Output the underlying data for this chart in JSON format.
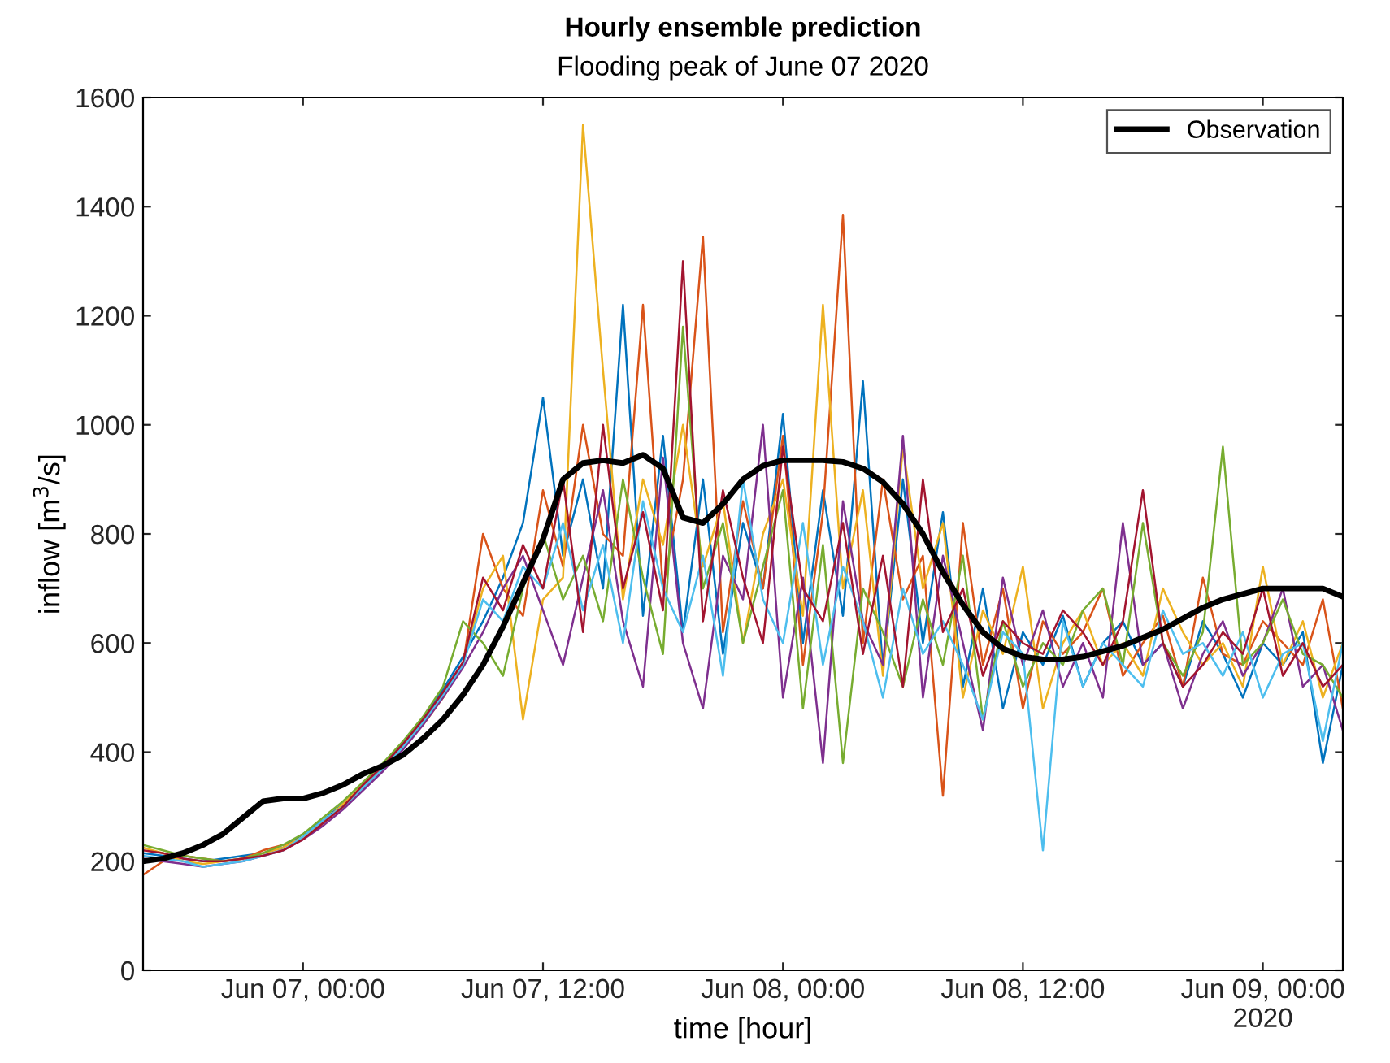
{
  "chart_data": {
    "type": "line",
    "title": "Hourly ensemble prediction",
    "subtitle": "Flooding peak of June 07 2020",
    "xlabel": "time [hour]",
    "ylabel": "inflow [m$^{3}$/s]",
    "x": [
      "2020-06-06T16:00",
      "2020-06-06T17:00",
      "2020-06-06T18:00",
      "2020-06-06T19:00",
      "2020-06-06T20:00",
      "2020-06-06T21:00",
      "2020-06-06T22:00",
      "2020-06-06T23:00",
      "2020-06-07T00:00",
      "2020-06-07T01:00",
      "2020-06-07T02:00",
      "2020-06-07T03:00",
      "2020-06-07T04:00",
      "2020-06-07T05:00",
      "2020-06-07T06:00",
      "2020-06-07T07:00",
      "2020-06-07T08:00",
      "2020-06-07T09:00",
      "2020-06-07T10:00",
      "2020-06-07T11:00",
      "2020-06-07T12:00",
      "2020-06-07T13:00",
      "2020-06-07T14:00",
      "2020-06-07T15:00",
      "2020-06-07T16:00",
      "2020-06-07T17:00",
      "2020-06-07T18:00",
      "2020-06-07T19:00",
      "2020-06-07T20:00",
      "2020-06-07T21:00",
      "2020-06-07T22:00",
      "2020-06-07T23:00",
      "2020-06-08T00:00",
      "2020-06-08T01:00",
      "2020-06-08T02:00",
      "2020-06-08T03:00",
      "2020-06-08T04:00",
      "2020-06-08T05:00",
      "2020-06-08T06:00",
      "2020-06-08T07:00",
      "2020-06-08T08:00",
      "2020-06-08T09:00",
      "2020-06-08T10:00",
      "2020-06-08T11:00",
      "2020-06-08T12:00",
      "2020-06-08T13:00",
      "2020-06-08T14:00",
      "2020-06-08T15:00",
      "2020-06-08T16:00",
      "2020-06-08T17:00",
      "2020-06-08T18:00",
      "2020-06-08T19:00",
      "2020-06-08T20:00",
      "2020-06-08T21:00",
      "2020-06-08T22:00",
      "2020-06-08T23:00",
      "2020-06-09T00:00",
      "2020-06-09T01:00",
      "2020-06-09T02:00",
      "2020-06-09T03:00",
      "2020-06-09T04:00"
    ],
    "series": [
      {
        "color": "#0072bd",
        "values": [
          215,
          210,
          205,
          200,
          205,
          210,
          215,
          225,
          250,
          275,
          305,
          340,
          375,
          415,
          460,
          515,
          575,
          640,
          720,
          820,
          1050,
          760,
          900,
          700,
          1220,
          650,
          980,
          620,
          900,
          580,
          820,
          700,
          1020,
          600,
          880,
          650,
          1080,
          550,
          900,
          600,
          840,
          520,
          700,
          480,
          620,
          560,
          650,
          520,
          600,
          640,
          560,
          600,
          520,
          640,
          580,
          500,
          600,
          560,
          620,
          380,
          560
        ]
      },
      {
        "color": "#d95319",
        "values": [
          175,
          200,
          210,
          205,
          200,
          205,
          220,
          230,
          240,
          270,
          300,
          335,
          370,
          410,
          455,
          500,
          560,
          800,
          700,
          650,
          880,
          740,
          1000,
          800,
          760,
          1220,
          700,
          900,
          1345,
          620,
          860,
          700,
          980,
          560,
          840,
          1385,
          600,
          900,
          680,
          760,
          320,
          820,
          560,
          700,
          480,
          640,
          580,
          620,
          700,
          540,
          600,
          650,
          520,
          720,
          580,
          560,
          640,
          600,
          560,
          680,
          480
        ]
      },
      {
        "color": "#edb120",
        "values": [
          225,
          215,
          200,
          195,
          200,
          205,
          215,
          225,
          245,
          270,
          305,
          340,
          375,
          410,
          450,
          500,
          560,
          700,
          760,
          460,
          680,
          720,
          1550,
          1100,
          680,
          900,
          780,
          1000,
          740,
          860,
          600,
          800,
          900,
          650,
          1220,
          700,
          880,
          540,
          960,
          700,
          820,
          500,
          660,
          580,
          740,
          480,
          600,
          660,
          560,
          600,
          540,
          700,
          620,
          560,
          600,
          520,
          740,
          560,
          640,
          500,
          600
        ]
      },
      {
        "color": "#7e2f8e",
        "values": [
          205,
          200,
          195,
          190,
          195,
          200,
          210,
          220,
          240,
          265,
          295,
          330,
          365,
          405,
          450,
          500,
          555,
          620,
          700,
          760,
          660,
          560,
          720,
          880,
          640,
          520,
          940,
          600,
          480,
          760,
          680,
          1000,
          500,
          720,
          380,
          860,
          640,
          560,
          980,
          500,
          760,
          600,
          440,
          720,
          560,
          660,
          520,
          600,
          500,
          820,
          560,
          600,
          480,
          580,
          640,
          540,
          600,
          700,
          520,
          560,
          440
        ]
      },
      {
        "color": "#77ac30",
        "values": [
          230,
          220,
          210,
          205,
          200,
          205,
          215,
          230,
          250,
          280,
          310,
          345,
          380,
          420,
          465,
          520,
          640,
          600,
          540,
          700,
          800,
          680,
          760,
          640,
          900,
          720,
          580,
          1180,
          700,
          820,
          600,
          740,
          880,
          480,
          780,
          380,
          700,
          620,
          520,
          680,
          560,
          760,
          460,
          640,
          520,
          600,
          560,
          660,
          700,
          560,
          820,
          600,
          540,
          620,
          960,
          560,
          600,
          680,
          580,
          560,
          500
        ]
      },
      {
        "color": "#4dbeee",
        "values": [
          210,
          205,
          200,
          190,
          195,
          200,
          210,
          220,
          245,
          275,
          300,
          335,
          370,
          410,
          455,
          505,
          560,
          680,
          640,
          740,
          700,
          820,
          660,
          780,
          600,
          860,
          700,
          620,
          760,
          540,
          900,
          680,
          600,
          820,
          560,
          740,
          640,
          500,
          700,
          580,
          640,
          560,
          460,
          620,
          580,
          220,
          640,
          520,
          600,
          560,
          520,
          660,
          580,
          600,
          540,
          620,
          500,
          580,
          600,
          420,
          600
        ]
      },
      {
        "color": "#a2142f",
        "values": [
          220,
          215,
          205,
          200,
          200,
          205,
          210,
          220,
          240,
          270,
          300,
          340,
          375,
          415,
          460,
          510,
          565,
          720,
          660,
          780,
          700,
          900,
          620,
          1000,
          700,
          840,
          660,
          1300,
          640,
          880,
          720,
          600,
          960,
          700,
          640,
          820,
          580,
          760,
          520,
          900,
          620,
          700,
          540,
          640,
          600,
          580,
          660,
          620,
          560,
          640,
          880,
          600,
          520,
          560,
          620,
          580,
          700,
          540,
          600,
          520,
          560
        ]
      },
      {
        "name": "Observation",
        "color": "#000000",
        "values": [
          200,
          205,
          215,
          230,
          250,
          280,
          310,
          315,
          315,
          325,
          340,
          360,
          375,
          395,
          425,
          460,
          505,
          560,
          630,
          710,
          790,
          900,
          930,
          935,
          930,
          945,
          920,
          830,
          820,
          855,
          900,
          925,
          935,
          935,
          935,
          932,
          920,
          895,
          855,
          800,
          730,
          670,
          620,
          590,
          575,
          570,
          570,
          575,
          585,
          595,
          610,
          625,
          645,
          665,
          680,
          690,
          700,
          700,
          700,
          700,
          685
        ]
      }
    ],
    "xlim": [
      "2020-06-06T16:00",
      "2020-06-09T04:00"
    ],
    "xticks": [
      {
        "value": "2020-06-07T00:00",
        "label": "Jun 07, 00:00"
      },
      {
        "value": "2020-06-07T12:00",
        "label": "Jun 07, 12:00"
      },
      {
        "value": "2020-06-08T00:00",
        "label": "Jun 08, 00:00"
      },
      {
        "value": "2020-06-08T12:00",
        "label": "Jun 08, 12:00"
      },
      {
        "value": "2020-06-09T00:00",
        "label": "Jun 09, 00:00\n2020"
      }
    ],
    "ylim": [
      0,
      1600
    ],
    "yticks": [
      0,
      200,
      400,
      600,
      800,
      1000,
      1200,
      1400,
      1600
    ],
    "grid": false,
    "legend": "top right",
    "marker": "none",
    "line_style": "solid"
  }
}
